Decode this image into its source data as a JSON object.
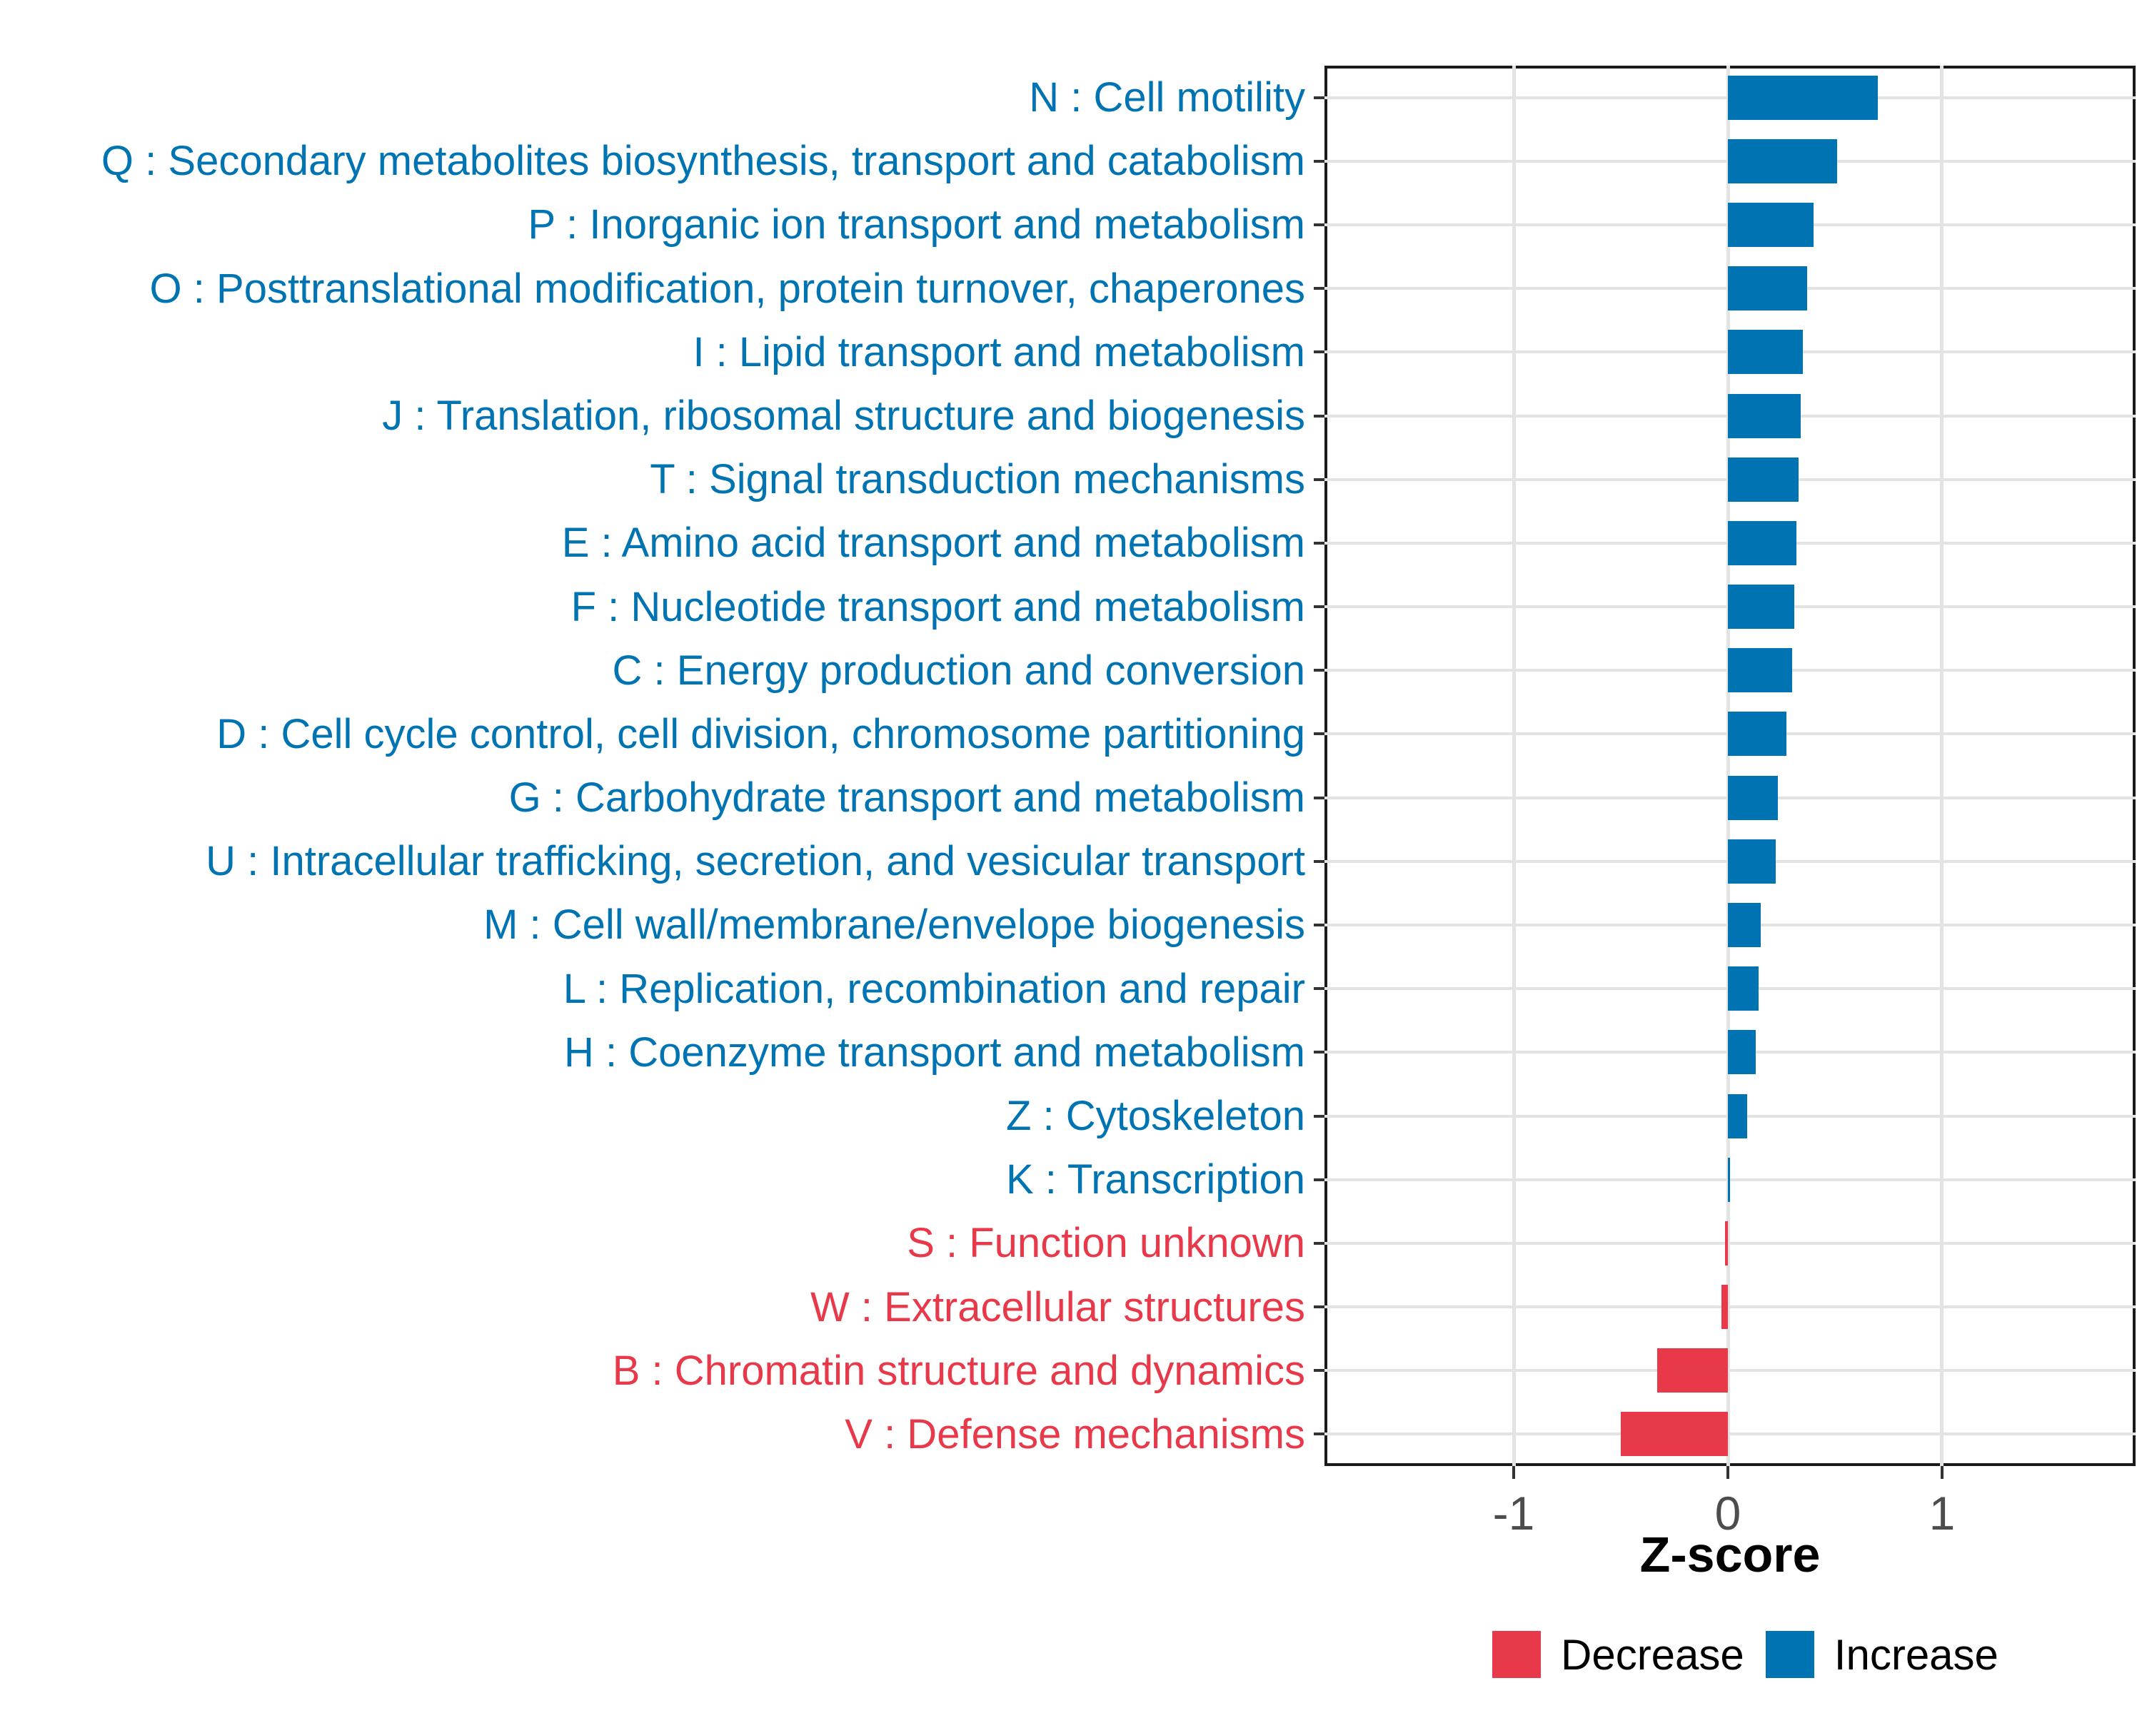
{
  "chart_data": {
    "type": "bar",
    "orientation": "horizontal",
    "title": "",
    "xlabel": "Z-score",
    "ylabel": "",
    "xlim": [
      -1.885,
      1.905
    ],
    "x_ticks": [
      -1,
      0,
      1
    ],
    "grid": "major",
    "legend_position": "bottom-right",
    "categories": [
      "N : Cell motility",
      "Q : Secondary metabolites biosynthesis, transport and catabolism",
      "P : Inorganic ion transport and metabolism",
      "O : Posttranslational modification, protein turnover, chaperones",
      "I : Lipid transport and metabolism",
      "J : Translation, ribosomal structure and biogenesis",
      "T : Signal transduction mechanisms",
      "E : Amino acid transport and metabolism",
      "F : Nucleotide transport and metabolism",
      "C : Energy production and conversion",
      "D : Cell cycle control, cell division, chromosome partitioning",
      "G : Carbohydrate transport and metabolism",
      "U : Intracellular trafficking, secretion, and vesicular transport",
      "M : Cell wall/membrane/envelope biogenesis",
      "L : Replication, recombination and repair",
      "H : Coenzyme transport and metabolism",
      "Z : Cytoskeleton",
      "K : Transcription",
      "S : Function unknown",
      "W : Extracellular structures",
      "B : Chromatin structure and dynamics",
      "V : Defense mechanisms"
    ],
    "values": [
      0.7,
      0.51,
      0.4,
      0.37,
      0.35,
      0.34,
      0.33,
      0.32,
      0.31,
      0.3,
      0.275,
      0.235,
      0.225,
      0.155,
      0.145,
      0.13,
      0.09,
      0.005,
      -0.015,
      -0.03,
      -0.33,
      -0.5
    ],
    "directions": [
      "increase",
      "increase",
      "increase",
      "increase",
      "increase",
      "increase",
      "increase",
      "increase",
      "increase",
      "increase",
      "increase",
      "increase",
      "increase",
      "increase",
      "increase",
      "increase",
      "increase",
      "increase",
      "decrease",
      "decrease",
      "decrease",
      "decrease"
    ],
    "colors": {
      "increase": "#0074B3",
      "decrease": "#E8394A",
      "grid": "#E3E3E3",
      "axis_text": "#4D4D4D",
      "tick_mark": "#333333",
      "panel_border": "#1A1A1A",
      "background": "#FFFFFF"
    },
    "legend": [
      {
        "label": "Decrease",
        "color": "#E8394A"
      },
      {
        "label": "Increase",
        "color": "#0074B3"
      }
    ]
  }
}
